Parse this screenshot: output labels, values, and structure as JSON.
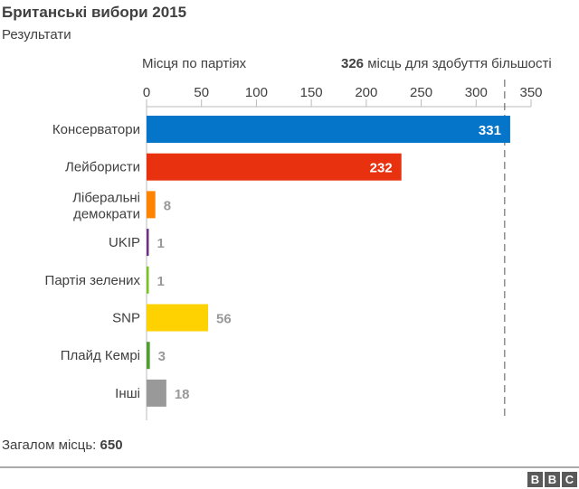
{
  "title": "Британські вибори 2015",
  "subtitle": "Результати",
  "chart_data": {
    "type": "bar",
    "orientation": "horizontal",
    "xlabel": "Місця по партіях",
    "xlim": [
      0,
      350
    ],
    "ticks": [
      0,
      50,
      100,
      150,
      200,
      250,
      300,
      350
    ],
    "grid": false,
    "categories": [
      "Консерватори",
      "Лейбористи",
      "Ліберальні демократи",
      "UKIP",
      "Партія зелених",
      "SNP",
      "Плайд Кемрі",
      "Інші"
    ],
    "values": [
      331,
      232,
      8,
      1,
      1,
      56,
      3,
      18
    ],
    "colors": [
      "#0575c9",
      "#e8320f",
      "#fe8300",
      "#712f87",
      "#78c31e",
      "#fed100",
      "#4e9f2f",
      "#999999"
    ],
    "reference_line": {
      "value": 326,
      "value_label": "326",
      "label": "місць для здобуття більшості",
      "style": "dashed"
    }
  },
  "total": {
    "label": "Загалом місць:",
    "value": "650"
  },
  "logo": "BBC"
}
